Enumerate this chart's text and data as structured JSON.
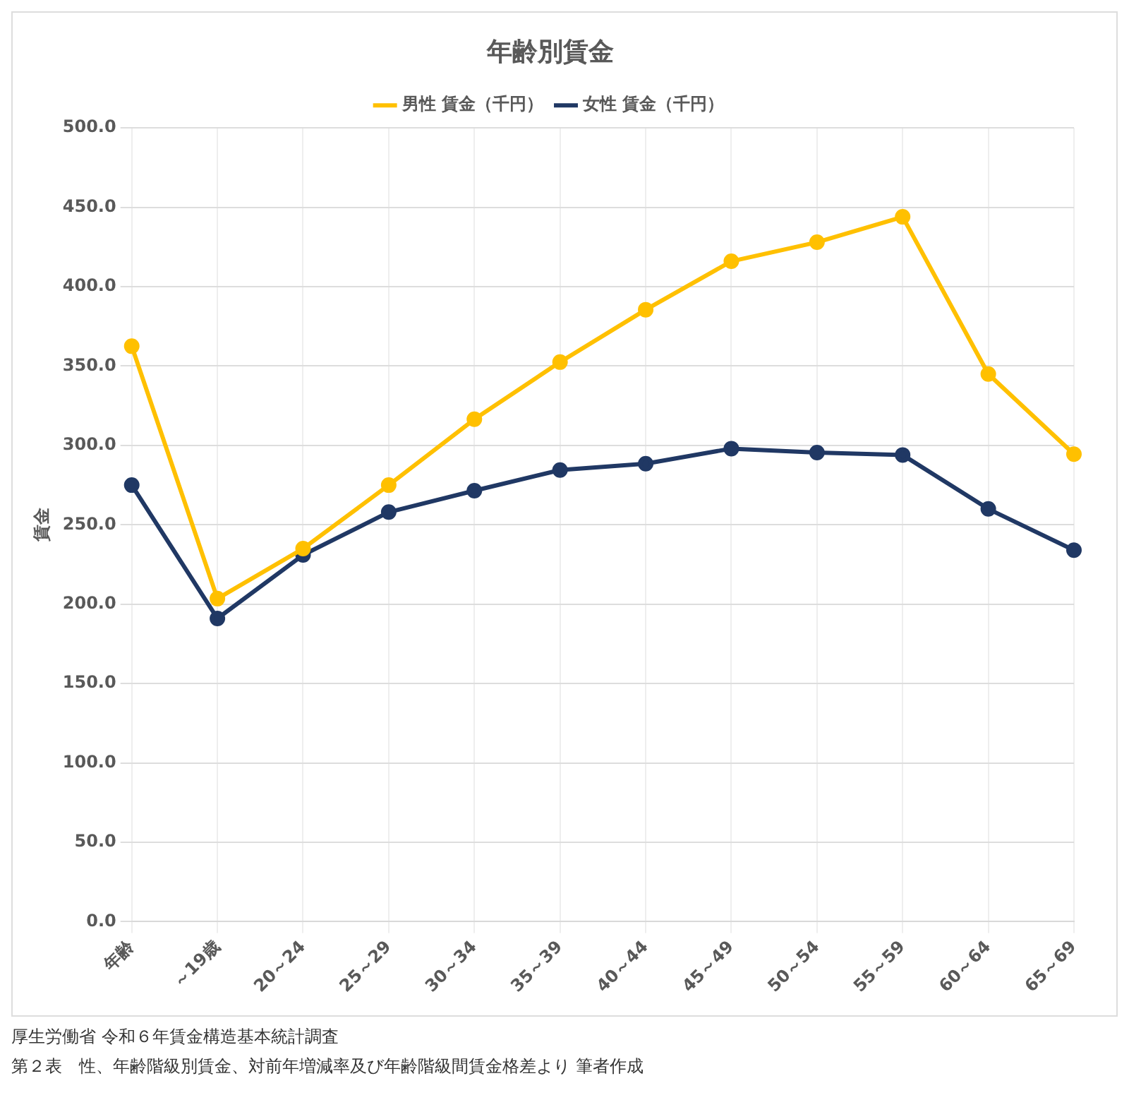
{
  "chart_data": {
    "type": "line",
    "title": "年齢別賃金",
    "ylabel": "賃金",
    "categories": [
      "年齢",
      "～19歳",
      "20～24",
      "25～29",
      "30～34",
      "35～39",
      "40～44",
      "45～49",
      "50～54",
      "55～59",
      "60～64",
      "65～69"
    ],
    "series": [
      {
        "name": "男性 賃金（千円）",
        "color": "#ffc000",
        "values": [
          362.5,
          203.5,
          235,
          275,
          316.5,
          352.5,
          385.5,
          416,
          428,
          444,
          345,
          294.5
        ]
      },
      {
        "name": "女性 賃金（千円）",
        "color": "#203864",
        "values": [
          275,
          191,
          231,
          258,
          271.5,
          284.5,
          288.5,
          298,
          295.5,
          294,
          260,
          234
        ]
      }
    ],
    "ylim": [
      0,
      500
    ],
    "yticks": [
      {
        "value": 0,
        "label": "0.0"
      },
      {
        "value": 50,
        "label": "50.0"
      },
      {
        "value": 100,
        "label": "100.0"
      },
      {
        "value": 150,
        "label": "150.0"
      },
      {
        "value": 200,
        "label": "200.0"
      },
      {
        "value": 250,
        "label": "250.0"
      },
      {
        "value": 300,
        "label": "300.0"
      },
      {
        "value": 350,
        "label": "350.0"
      },
      {
        "value": 400,
        "label": "400.0"
      },
      {
        "value": 450,
        "label": "450.0"
      },
      {
        "value": 500,
        "label": "500.0"
      }
    ],
    "grid": true,
    "legend": "top",
    "marker": "circle",
    "line_style": "solid",
    "annotations": [
      "厚生労働省 令和６年賃金構造基本統計調査",
      "第２表　性、年齢階級別賃金、対前年増減率及び年齢階級間賃金格差より 筆者作成"
    ]
  }
}
